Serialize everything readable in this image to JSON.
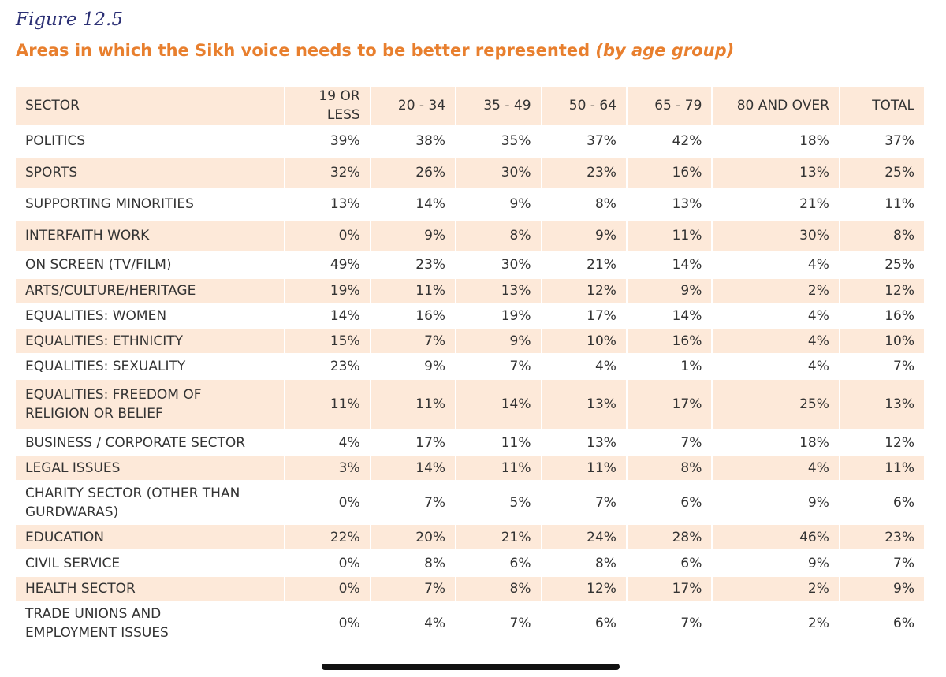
{
  "figure_label": "Figure 12.5",
  "title_main": "Areas in which the Sikh voice needs to be better represented",
  "title_suffix": "(by age group)",
  "table": {
    "headers": [
      "SECTOR",
      "19 OR LESS",
      "20 - 34",
      "35 - 49",
      "50 - 64",
      "65 - 79",
      "80 AND OVER",
      "TOTAL"
    ],
    "rows": [
      {
        "sector": "POLITICS",
        "values": [
          "39%",
          "38%",
          "35%",
          "37%",
          "42%",
          "18%",
          "37%"
        ]
      },
      {
        "sector": "SPORTS",
        "values": [
          "32%",
          "26%",
          "30%",
          "23%",
          "16%",
          "13%",
          "25%"
        ]
      },
      {
        "sector": "SUPPORTING MINORITIES",
        "values": [
          "13%",
          "14%",
          "9%",
          "8%",
          "13%",
          "21%",
          "11%"
        ]
      },
      {
        "sector": "INTERFAITH WORK",
        "values": [
          "0%",
          "9%",
          "8%",
          "9%",
          "11%",
          "30%",
          "8%"
        ]
      },
      {
        "sector": "ON SCREEN (TV/FILM)",
        "values": [
          "49%",
          "23%",
          "30%",
          "21%",
          "14%",
          "4%",
          "25%"
        ]
      },
      {
        "sector": "ARTS/CULTURE/HERITAGE",
        "values": [
          "19%",
          "11%",
          "13%",
          "12%",
          "9%",
          "2%",
          "12%"
        ]
      },
      {
        "sector": "EQUALITIES: WOMEN",
        "values": [
          "14%",
          "16%",
          "19%",
          "17%",
          "14%",
          "4%",
          "16%"
        ]
      },
      {
        "sector": "EQUALITIES: ETHNICITY",
        "values": [
          "15%",
          "7%",
          "9%",
          "10%",
          "16%",
          "4%",
          "10%"
        ]
      },
      {
        "sector": "EQUALITIES: SEXUALITY",
        "values": [
          "23%",
          "9%",
          "7%",
          "4%",
          "1%",
          "4%",
          "7%"
        ]
      },
      {
        "sector_lines": [
          "EQUALITIES: FREEDOM OF",
          "RELIGION OR BELIEF"
        ],
        "values": [
          "11%",
          "11%",
          "14%",
          "13%",
          "17%",
          "25%",
          "13%"
        ]
      },
      {
        "sector": "BUSINESS / CORPORATE SECTOR",
        "values": [
          "4%",
          "17%",
          "11%",
          "13%",
          "7%",
          "18%",
          "12%"
        ]
      },
      {
        "sector": "LEGAL ISSUES",
        "values": [
          "3%",
          "14%",
          "11%",
          "11%",
          "8%",
          "4%",
          "11%"
        ]
      },
      {
        "sector_lines": [
          "CHARITY SECTOR (OTHER THAN",
          "GURDWARAS)"
        ],
        "values": [
          "0%",
          "7%",
          "5%",
          "7%",
          "6%",
          "9%",
          "6%"
        ]
      },
      {
        "sector": "EDUCATION",
        "values": [
          "22%",
          "20%",
          "21%",
          "24%",
          "28%",
          "46%",
          "23%"
        ]
      },
      {
        "sector": "CIVIL SERVICE",
        "values": [
          "0%",
          "8%",
          "6%",
          "8%",
          "6%",
          "9%",
          "7%"
        ]
      },
      {
        "sector": "HEALTH SECTOR",
        "values": [
          "0%",
          "7%",
          "8%",
          "12%",
          "17%",
          "2%",
          "9%"
        ]
      },
      {
        "sector_lines": [
          "TRADE UNIONS AND",
          "EMPLOYMENT ISSUES"
        ],
        "values": [
          "0%",
          "4%",
          "7%",
          "6%",
          "7%",
          "2%",
          "6%"
        ]
      }
    ]
  }
}
